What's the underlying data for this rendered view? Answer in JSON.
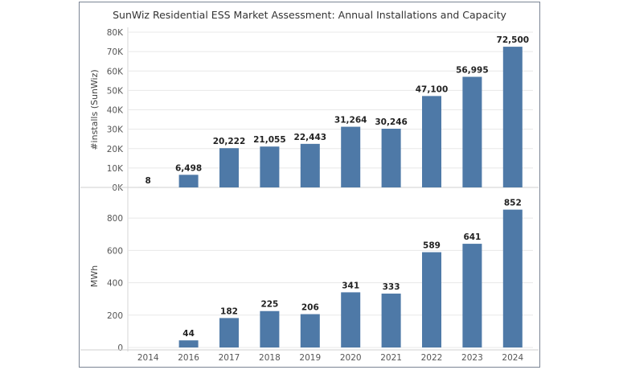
{
  "title": "SunWiz Residential ESS Market Assessment: Annual Installations and Capacity",
  "colors": {
    "bar": "#4e79a7",
    "grid": "#e8e8e8",
    "frame": "#7b8594"
  },
  "chart_data": {
    "type": "bar",
    "categories": [
      "2014",
      "2016",
      "2017",
      "2018",
      "2019",
      "2020",
      "2021",
      "2022",
      "2023",
      "2024"
    ],
    "panels": [
      {
        "ylabel": "#installs (SunWiz)",
        "ylim": [
          0,
          80000
        ],
        "yticks": [
          0,
          10000,
          20000,
          30000,
          40000,
          50000,
          60000,
          70000,
          80000
        ],
        "ytick_labels": [
          "0K",
          "10K",
          "20K",
          "30K",
          "40K",
          "50K",
          "60K",
          "70K",
          "80K"
        ],
        "values": [
          8,
          6498,
          20222,
          21055,
          22443,
          31264,
          30246,
          47100,
          56995,
          72500
        ],
        "data_labels": [
          "8",
          "6,498",
          "20,222",
          "21,055",
          "22,443",
          "31,264",
          "30,246",
          "47,100",
          "56,995",
          "72,500"
        ]
      },
      {
        "ylabel": "MWh",
        "ylim": [
          0,
          880
        ],
        "yticks": [
          0,
          200,
          400,
          600,
          800
        ],
        "ytick_labels": [
          "0",
          "200",
          "400",
          "600",
          "800"
        ],
        "values": [
          null,
          44,
          182,
          225,
          206,
          341,
          333,
          589,
          641,
          852
        ],
        "data_labels": [
          "",
          "44",
          "182",
          "225",
          "206",
          "341",
          "333",
          "589",
          "641",
          "852"
        ]
      }
    ],
    "grid": true,
    "legend": "none"
  }
}
